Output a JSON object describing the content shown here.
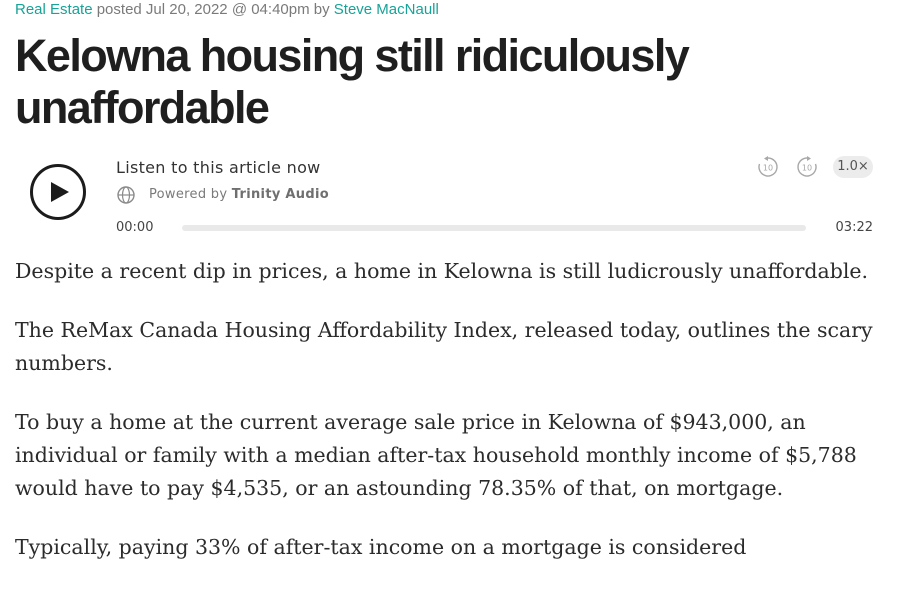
{
  "byline": {
    "category": "Real Estate",
    "posted": "posted Jul 20, 2022 @ 04:40pm by",
    "author": "Steve MacNaull"
  },
  "headline": "Kelowna housing still ridiculously unaffordable",
  "player": {
    "title": "Listen to this article now",
    "powered_by_prefix": "Powered by",
    "powered_by_brand": "Trinity Audio",
    "skip_back_label": "10",
    "skip_forward_label": "10",
    "speed": "1.0×",
    "current_time": "00:00",
    "total_time": "03:22",
    "progress": 0,
    "icons": [
      "play-icon",
      "globe-icon",
      "rewind-10-icon",
      "forward-10-icon"
    ]
  },
  "article": {
    "paragraphs": [
      "Despite a recent dip in prices, a home in Kelowna is still ludicrously unaffordable.",
      "The ReMax Canada Housing Affordability Index, released today, outlines the scary numbers.",
      "To buy a home at the current average sale price in Kelowna of $943,000, an individual or family with a median after-tax household monthly income of $5,788 would have to pay $4,535, or an astounding 78.35% of that, on mortgage.",
      "Typically, paying 33% of after-tax income on a mortgage is considered"
    ]
  },
  "colors": {
    "link": "#17a398",
    "headline": "#1f1f1f",
    "body_text": "#2b2b2b"
  }
}
